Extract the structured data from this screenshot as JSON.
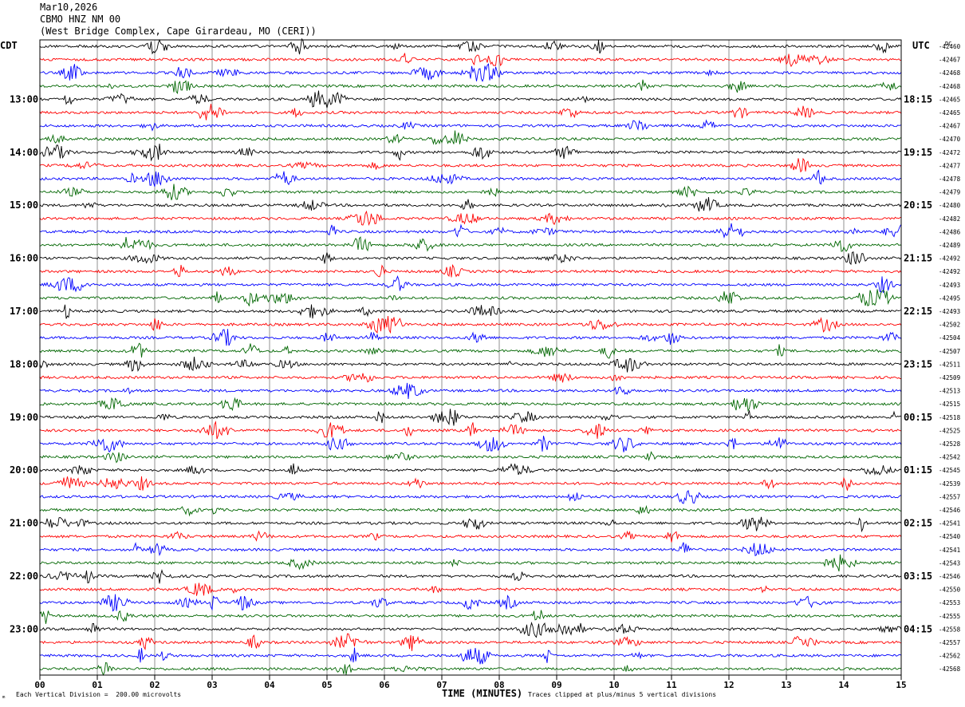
{
  "header": {
    "date": "Mar10,2026",
    "station": "CBMO HNZ NM 00",
    "location": "(West Bridge Complex, Cape Girardeau, MO (CERI))"
  },
  "left_zone_label": "CDT",
  "right_zone_label": "UTC",
  "dc_label": "DC",
  "footer": {
    "scale_note": "Each Vertical Division =  200.00 microvolts",
    "xlabel": "TIME (MINUTES)",
    "clip_note": "Traces clipped at plus/minus 5 vertical divisions",
    "corner_mark": "ₘ"
  },
  "chart_data": {
    "type": "line",
    "trace_colors": [
      "#000000",
      "#ff0000",
      "#0000ff",
      "#006600"
    ],
    "x_ticks": [
      "00",
      "01",
      "02",
      "03",
      "04",
      "05",
      "06",
      "07",
      "08",
      "09",
      "10",
      "11",
      "12",
      "13",
      "14",
      "15"
    ],
    "xlim": [
      0,
      15
    ],
    "grid": true,
    "left_hour_labels": [
      "13:00",
      "14:00",
      "15:00",
      "16:00",
      "17:00",
      "18:00",
      "19:00",
      "20:00",
      "21:00",
      "22:00",
      "23:00"
    ],
    "right_hour_labels": [
      "18:15",
      "19:15",
      "20:15",
      "21:15",
      "22:15",
      "23:15",
      "00:15",
      "01:15",
      "02:15",
      "03:15",
      "04:15"
    ],
    "dc_offsets": [
      "-42460",
      "-42467",
      "-42468",
      "-42468",
      "-42465",
      "-42465",
      "-42467",
      "-42470",
      "-42472",
      "-42477",
      "-42478",
      "-42479",
      "-42480",
      "-42482",
      "-42486",
      "-42489",
      "-42492",
      "-42492",
      "-42493",
      "-42495",
      "-42493",
      "-42502",
      "-42504",
      "-42507",
      "-42511",
      "-42509",
      "-42513",
      "-42515",
      "-42518",
      "-42525",
      "-42528",
      "-42542",
      "-42545",
      "-42539",
      "-42557",
      "-42546",
      "-42541",
      "-42540",
      "-42541",
      "-42543",
      "-42546",
      "-42550",
      "-42553",
      "-42555",
      "-42558",
      "-42557",
      "-42562",
      "-42568"
    ]
  }
}
